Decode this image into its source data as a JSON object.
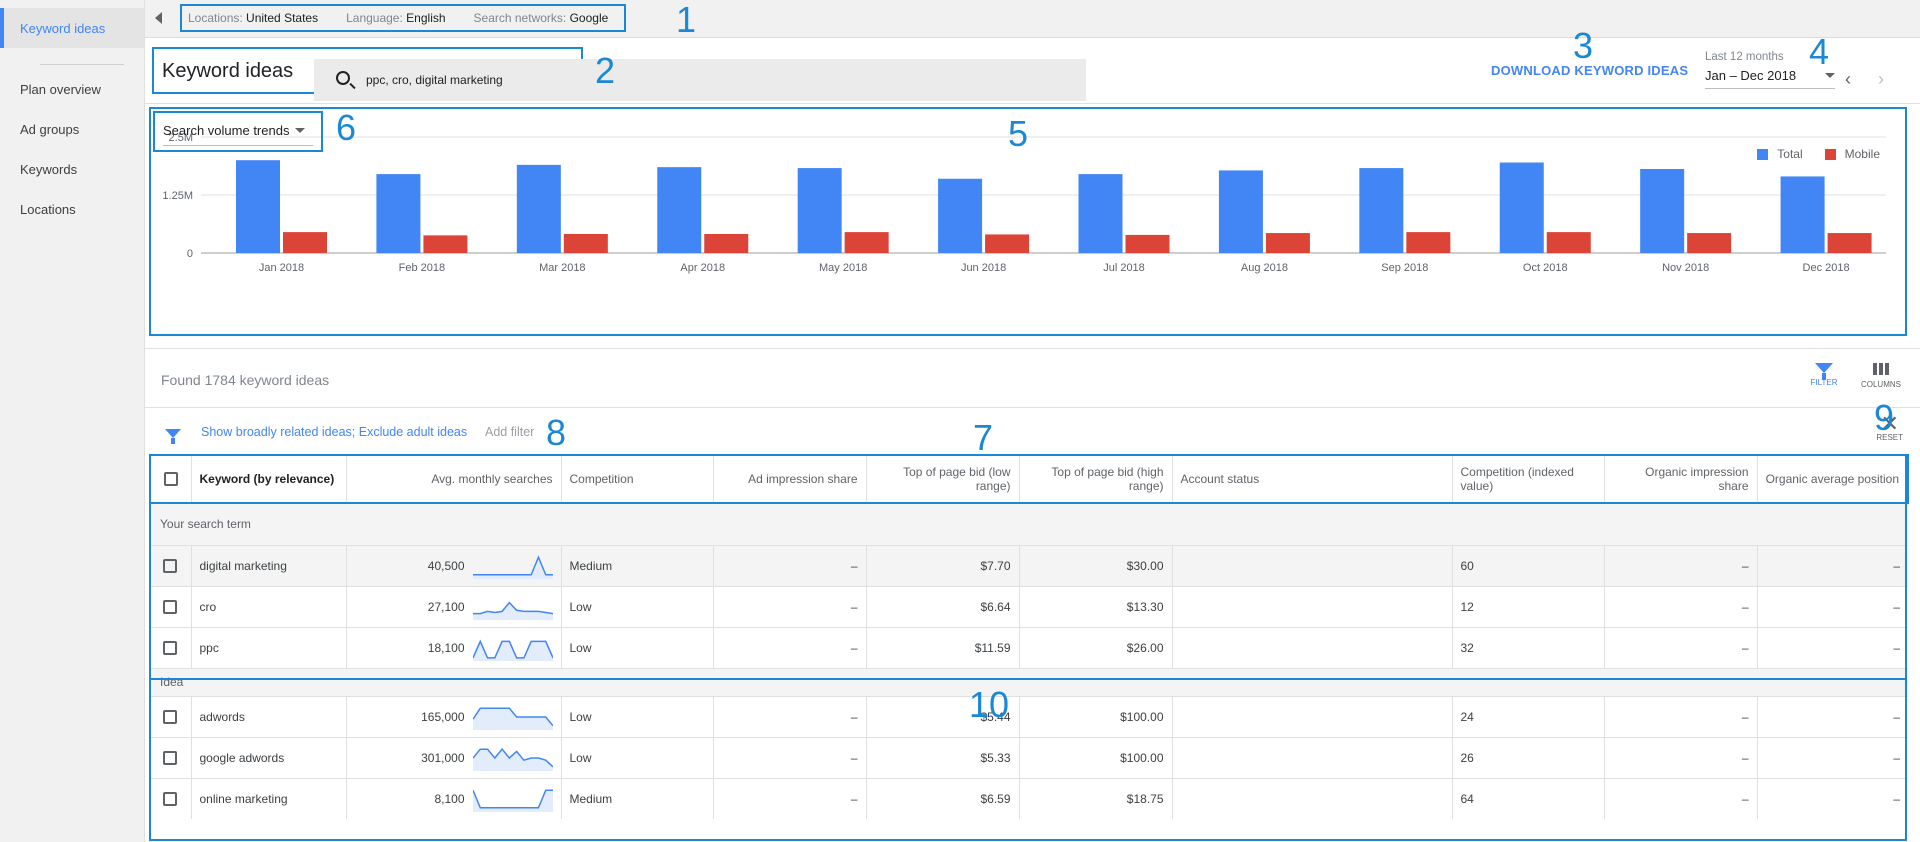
{
  "sidebar": {
    "items": [
      {
        "label": "Keyword ideas",
        "active": true
      },
      {
        "label": "Plan overview"
      },
      {
        "label": "Ad groups"
      },
      {
        "label": "Keywords"
      },
      {
        "label": "Locations"
      }
    ]
  },
  "topbar": {
    "location_label": "Locations:",
    "location_value": "United States",
    "language_label": "Language:",
    "language_value": "English",
    "networks_label": "Search networks:",
    "networks_value": "Google"
  },
  "header": {
    "title": "Keyword ideas",
    "search_value": "ppc, cro, digital marketing",
    "download_label": "DOWNLOAD KEYWORD IDEAS",
    "date_label": "Last 12 months",
    "date_value": "Jan – Dec 2018"
  },
  "annotations": [
    "1",
    "2",
    "3",
    "4",
    "5",
    "6",
    "7",
    "8",
    "9",
    "10"
  ],
  "chart": {
    "selector_label": "Search volume trends",
    "legend_total": "Total",
    "legend_mobile": "Mobile",
    "colors": {
      "total": "#4285f4",
      "mobile": "#db4437"
    }
  },
  "chart_data": {
    "type": "bar",
    "categories": [
      "Jan 2018",
      "Feb 2018",
      "Mar 2018",
      "Apr 2018",
      "May 2018",
      "Jun 2018",
      "Jul 2018",
      "Aug 2018",
      "Sep 2018",
      "Oct 2018",
      "Nov 2018",
      "Dec 2018"
    ],
    "series": [
      {
        "name": "Total",
        "values": [
          2000000,
          1700000,
          1900000,
          1850000,
          1830000,
          1600000,
          1700000,
          1780000,
          1830000,
          1950000,
          1810000,
          1650000
        ]
      },
      {
        "name": "Mobile",
        "values": [
          450000,
          380000,
          410000,
          410000,
          450000,
          400000,
          390000,
          430000,
          450000,
          450000,
          430000,
          430000
        ]
      }
    ],
    "yticks": [
      "0",
      "1.25M",
      "2.5M"
    ],
    "ylim": [
      0,
      2500000
    ],
    "legend": "top-right"
  },
  "results": {
    "found_text": "Found 1784 keyword ideas",
    "filter_label": "FILTER",
    "columns_label": "COLUMNS",
    "filter_link": "Show broadly related ideas; Exclude adult ideas",
    "add_filter": "Add filter",
    "reset_label": "RESET"
  },
  "table": {
    "headers": [
      "Keyword (by relevance)",
      "Avg. monthly searches",
      "Competition",
      "Ad impression share",
      "Top of page bid (low range)",
      "Top of page bid (high range)",
      "Account status",
      "Competition (indexed value)",
      "Organic impression share",
      "Organic average position"
    ],
    "section_search": "Your search term",
    "section_idea": "Idea",
    "search_rows": [
      {
        "keyword": "digital marketing",
        "searches": "40,500",
        "competition": "Medium",
        "ad_share": "–",
        "bid_low": "$7.70",
        "bid_high": "$30.00",
        "status": "",
        "comp_index": "60",
        "organic_share": "–",
        "organic_pos": "–"
      },
      {
        "keyword": "cro",
        "searches": "27,100",
        "competition": "Low",
        "ad_share": "–",
        "bid_low": "$6.64",
        "bid_high": "$13.30",
        "status": "",
        "comp_index": "12",
        "organic_share": "–",
        "organic_pos": "–"
      },
      {
        "keyword": "ppc",
        "searches": "18,100",
        "competition": "Low",
        "ad_share": "–",
        "bid_low": "$11.59",
        "bid_high": "$26.00",
        "status": "",
        "comp_index": "32",
        "organic_share": "–",
        "organic_pos": "–"
      }
    ],
    "idea_rows": [
      {
        "keyword": "adwords",
        "searches": "165,000",
        "competition": "Low",
        "ad_share": "–",
        "bid_low": "$5.44",
        "bid_high": "$100.00",
        "status": "",
        "comp_index": "24",
        "organic_share": "–",
        "organic_pos": "–"
      },
      {
        "keyword": "google adwords",
        "searches": "301,000",
        "competition": "Low",
        "ad_share": "–",
        "bid_low": "$5.33",
        "bid_high": "$100.00",
        "status": "",
        "comp_index": "26",
        "organic_share": "–",
        "organic_pos": "–"
      },
      {
        "keyword": "online marketing",
        "searches": "8,100",
        "competition": "Medium",
        "ad_share": "–",
        "bid_low": "$6.59",
        "bid_high": "$18.75",
        "status": "",
        "comp_index": "64",
        "organic_share": "–",
        "organic_pos": "–"
      }
    ]
  }
}
